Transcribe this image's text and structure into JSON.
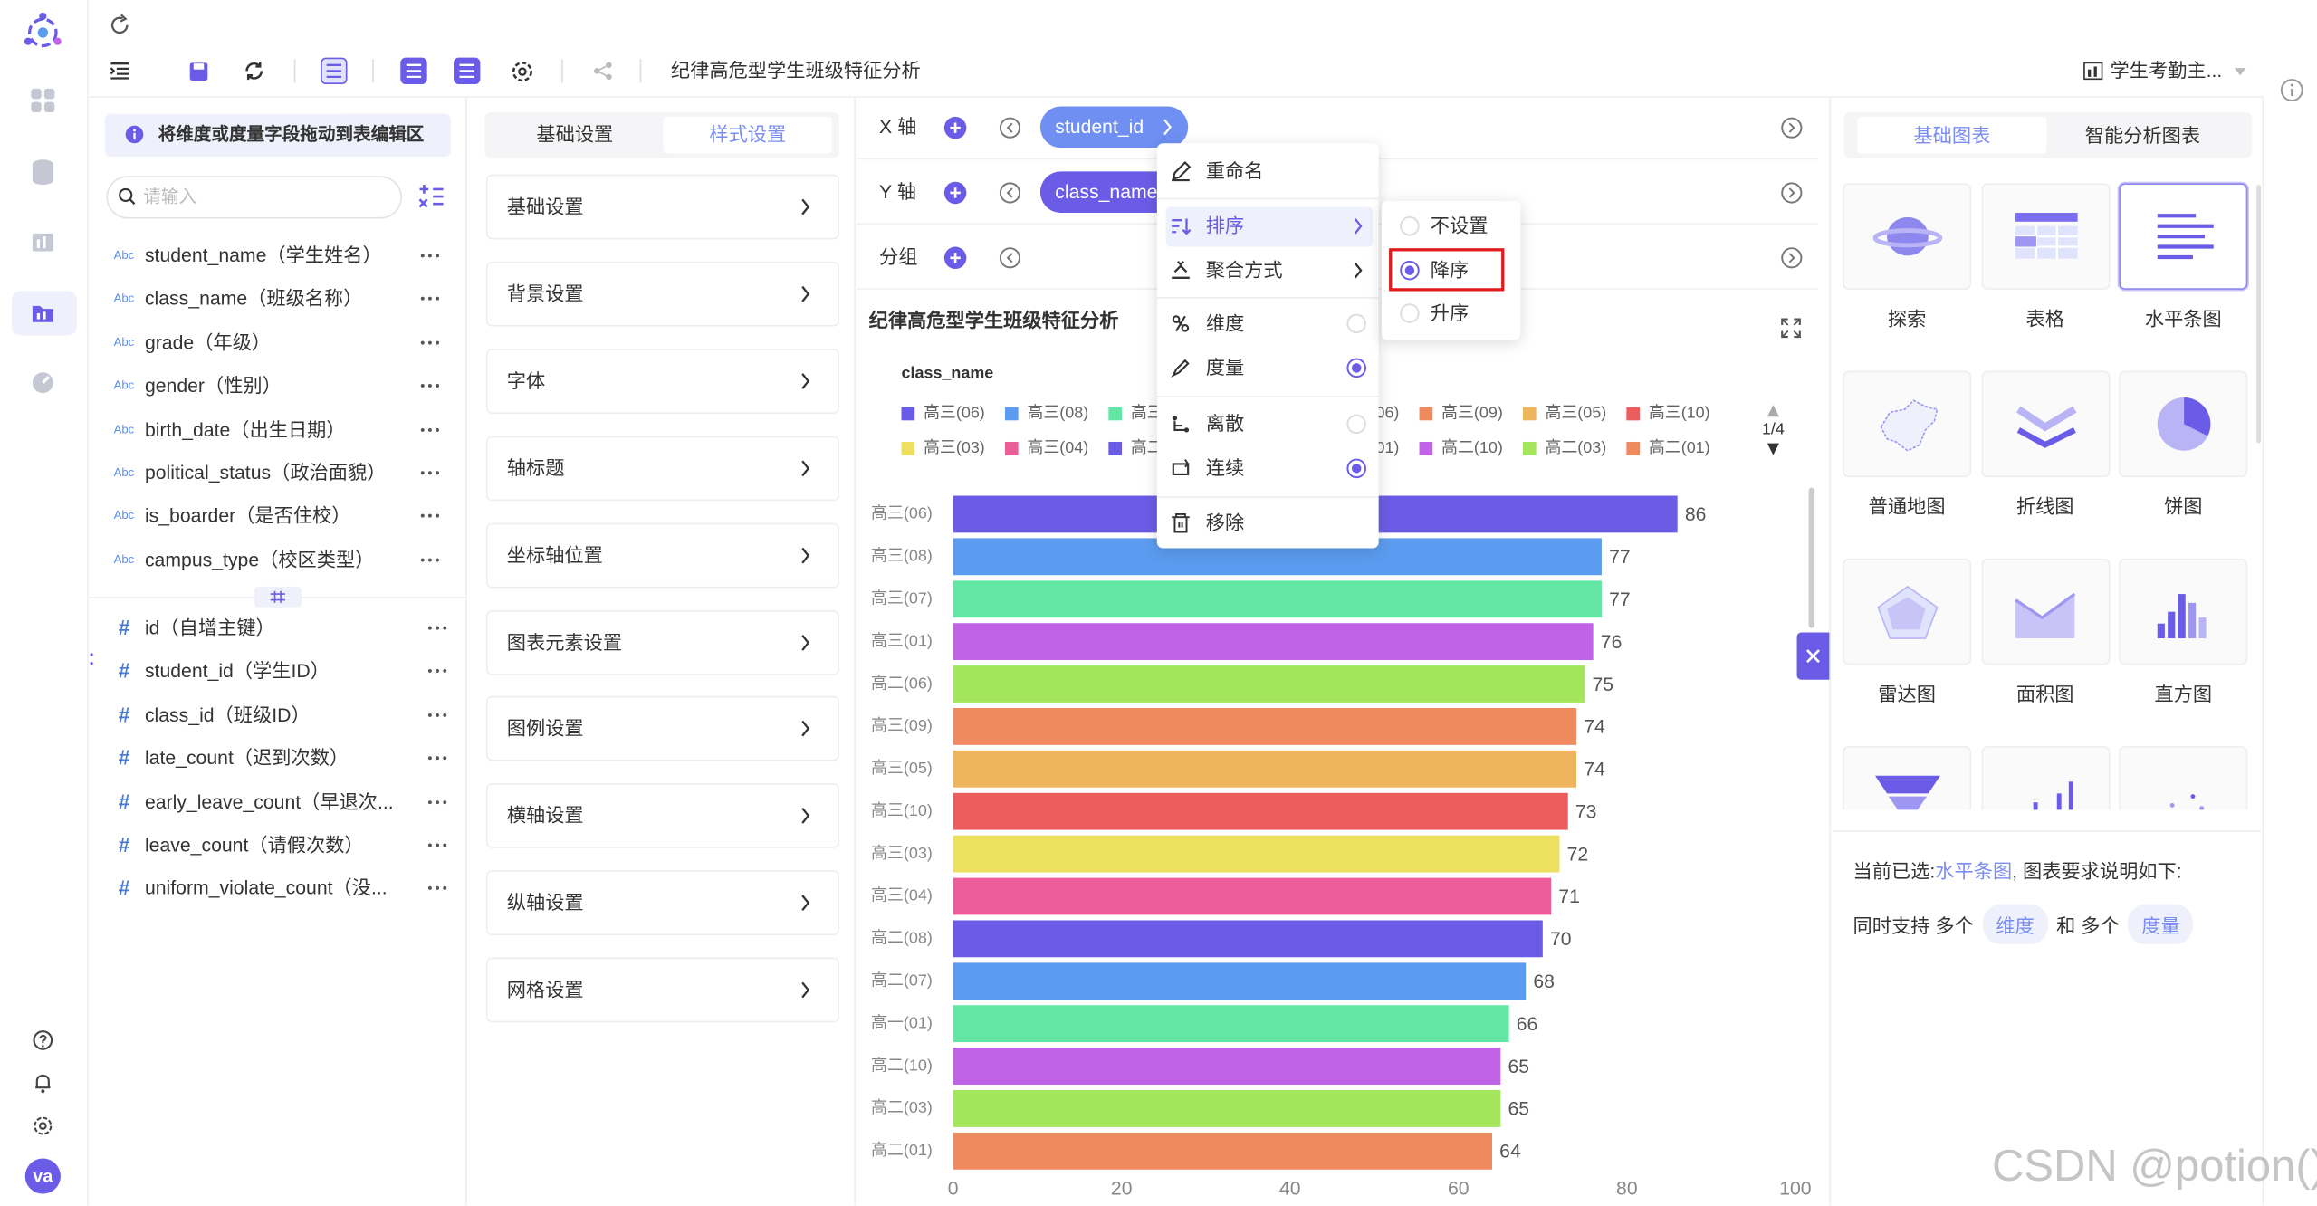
{
  "toolbar": {
    "title": "纪律高危型学生班级特征分析",
    "dataset": "学生考勤主..."
  },
  "sidebar": {
    "avatar": "va"
  },
  "fields": {
    "hint": "将维度或度量字段拖动到表编辑区",
    "search_placeholder": "请输入",
    "dimensions": [
      {
        "type": "Abc",
        "name": "student_name（学生姓名）"
      },
      {
        "type": "Abc",
        "name": "class_name（班级名称）"
      },
      {
        "type": "Abc",
        "name": "grade（年级）"
      },
      {
        "type": "Abc",
        "name": "gender（性别）"
      },
      {
        "type": "Abc",
        "name": "birth_date（出生日期）"
      },
      {
        "type": "Abc",
        "name": "political_status（政治面貌）"
      },
      {
        "type": "Abc",
        "name": "is_boarder（是否住校）"
      },
      {
        "type": "Abc",
        "name": "campus_type（校区类型）"
      }
    ],
    "measures": [
      {
        "type": "#",
        "name": "id（自增主键）"
      },
      {
        "type": "#",
        "name": "student_id（学生ID）"
      },
      {
        "type": "#",
        "name": "class_id（班级ID）"
      },
      {
        "type": "#",
        "name": "late_count（迟到次数）"
      },
      {
        "type": "#",
        "name": "early_leave_count（早退次..."
      },
      {
        "type": "#",
        "name": "leave_count（请假次数）"
      },
      {
        "type": "#",
        "name": "uniform_violate_count（没..."
      }
    ]
  },
  "settings": {
    "tabs": [
      "基础设置",
      "样式设置"
    ],
    "active_tab": 1,
    "items": [
      "基础设置",
      "背景设置",
      "字体",
      "轴标题",
      "坐标轴位置",
      "图表元素设置",
      "图例设置",
      "横轴设置",
      "纵轴设置",
      "网格设置"
    ]
  },
  "axes": [
    {
      "label": "X 轴",
      "field": "student_id"
    },
    {
      "label": "Y 轴",
      "field": "class_name"
    },
    {
      "label": "分组"
    }
  ],
  "context_menu": {
    "groups": [
      [
        {
          "label": "重命名"
        }
      ],
      [
        {
          "label": "排序",
          "active": true,
          "submenu": true
        },
        {
          "label": "聚合方式",
          "submenu": true
        }
      ],
      [
        {
          "label": "维度",
          "checked": false
        },
        {
          "label": "度量",
          "checked": true
        }
      ],
      [
        {
          "label": "离散",
          "checked": false
        },
        {
          "label": "连续",
          "checked": true
        }
      ],
      [
        {
          "label": "移除"
        }
      ]
    ],
    "sort_options": [
      "不设置",
      "降序",
      "升序"
    ],
    "selected_sort": 1
  },
  "chart_data": {
    "type": "bar",
    "orientation": "horizontal",
    "title": "纪律高危型学生班级特征分析",
    "legend_title": "class_name",
    "legend_page": "1/4",
    "categories": [
      "高三(06)",
      "高三(08)",
      "高三(07)",
      "高三(01)",
      "高二(06)",
      "高三(09)",
      "高三(05)",
      "高三(10)",
      "高三(03)",
      "高三(04)",
      "高二(08)",
      "高二(07)",
      "高一(01)",
      "高二(10)",
      "高二(03)",
      "高二(01)"
    ],
    "values": [
      86,
      77,
      77,
      76,
      75,
      74,
      74,
      73,
      72,
      71,
      70,
      68,
      66,
      65,
      65,
      64
    ],
    "colors": [
      "#6b5ce7",
      "#5b9cf0",
      "#63e6a4",
      "#c063e6",
      "#a3e65c",
      "#ef8a5e",
      "#efb45e",
      "#ec5e5e",
      "#ece05e",
      "#ec5e9a",
      "#6b5ce7",
      "#5b9cf0",
      "#63e6a4",
      "#c063e6",
      "#a3e65c",
      "#ef8a5e"
    ],
    "xlim": [
      0,
      100
    ],
    "xticks": [
      0,
      20,
      40,
      60,
      80,
      100
    ]
  },
  "chart_types": {
    "tabs": [
      "基础图表",
      "智能分析图表"
    ],
    "active_tab": 0,
    "items": [
      "探索",
      "表格",
      "水平条图",
      "普通地图",
      "折线图",
      "饼图",
      "雷达图",
      "面积图",
      "直方图"
    ],
    "selected": 2
  },
  "description": {
    "prefix": "当前已选:",
    "chart": "水平条图",
    "suffix": ", 图表要求说明如下:",
    "line2": [
      "同时支持 多个",
      "维度",
      "和 多个",
      "度量"
    ]
  },
  "watermark": "CSDN @potion()"
}
